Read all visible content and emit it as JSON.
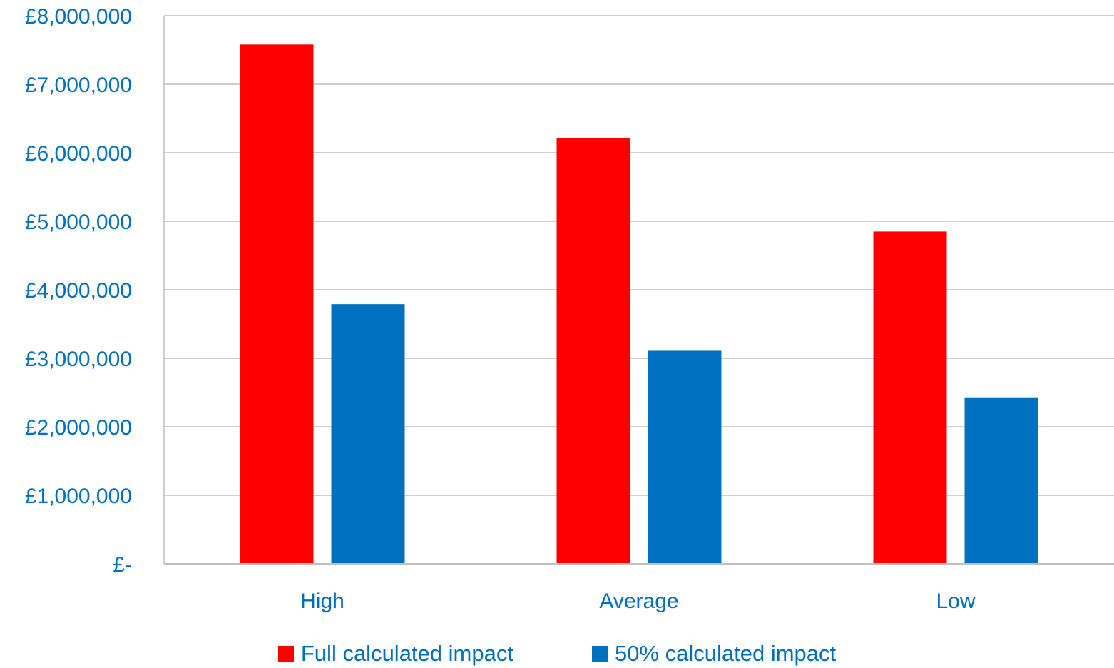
{
  "chart_data": {
    "type": "bar",
    "categories": [
      "High",
      "Average",
      "Low"
    ],
    "series": [
      {
        "name": "Full calculated impact",
        "color": "#ff0000",
        "values": [
          7580000,
          6210000,
          4850000
        ]
      },
      {
        "name": "50% calculated impact",
        "color": "#0070c0",
        "values": [
          3790000,
          3110000,
          2430000
        ]
      }
    ],
    "y_ticks": [
      {
        "value": 0,
        "label": "£-"
      },
      {
        "value": 1000000,
        "label": "£1,000,000"
      },
      {
        "value": 2000000,
        "label": "£2,000,000"
      },
      {
        "value": 3000000,
        "label": "£3,000,000"
      },
      {
        "value": 4000000,
        "label": "£4,000,000"
      },
      {
        "value": 5000000,
        "label": "£5,000,000"
      },
      {
        "value": 6000000,
        "label": "£6,000,000"
      },
      {
        "value": 7000000,
        "label": "£7,000,000"
      },
      {
        "value": 8000000,
        "label": "£8,000,000"
      }
    ],
    "ylim": [
      0,
      8000000
    ],
    "grid": true,
    "legend_position": "bottom",
    "title": "",
    "xlabel": "",
    "ylabel": ""
  }
}
